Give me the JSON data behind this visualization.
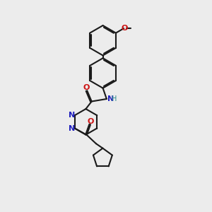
{
  "background_color": "#ececec",
  "line_color": "#1a1a1a",
  "nitrogen_color": "#2020bb",
  "oxygen_color": "#cc1010",
  "bond_width": 1.5,
  "fig_width": 3.0,
  "fig_height": 3.0,
  "dpi": 100,
  "xlim": [
    0,
    10
  ],
  "ylim": [
    0,
    10
  ]
}
